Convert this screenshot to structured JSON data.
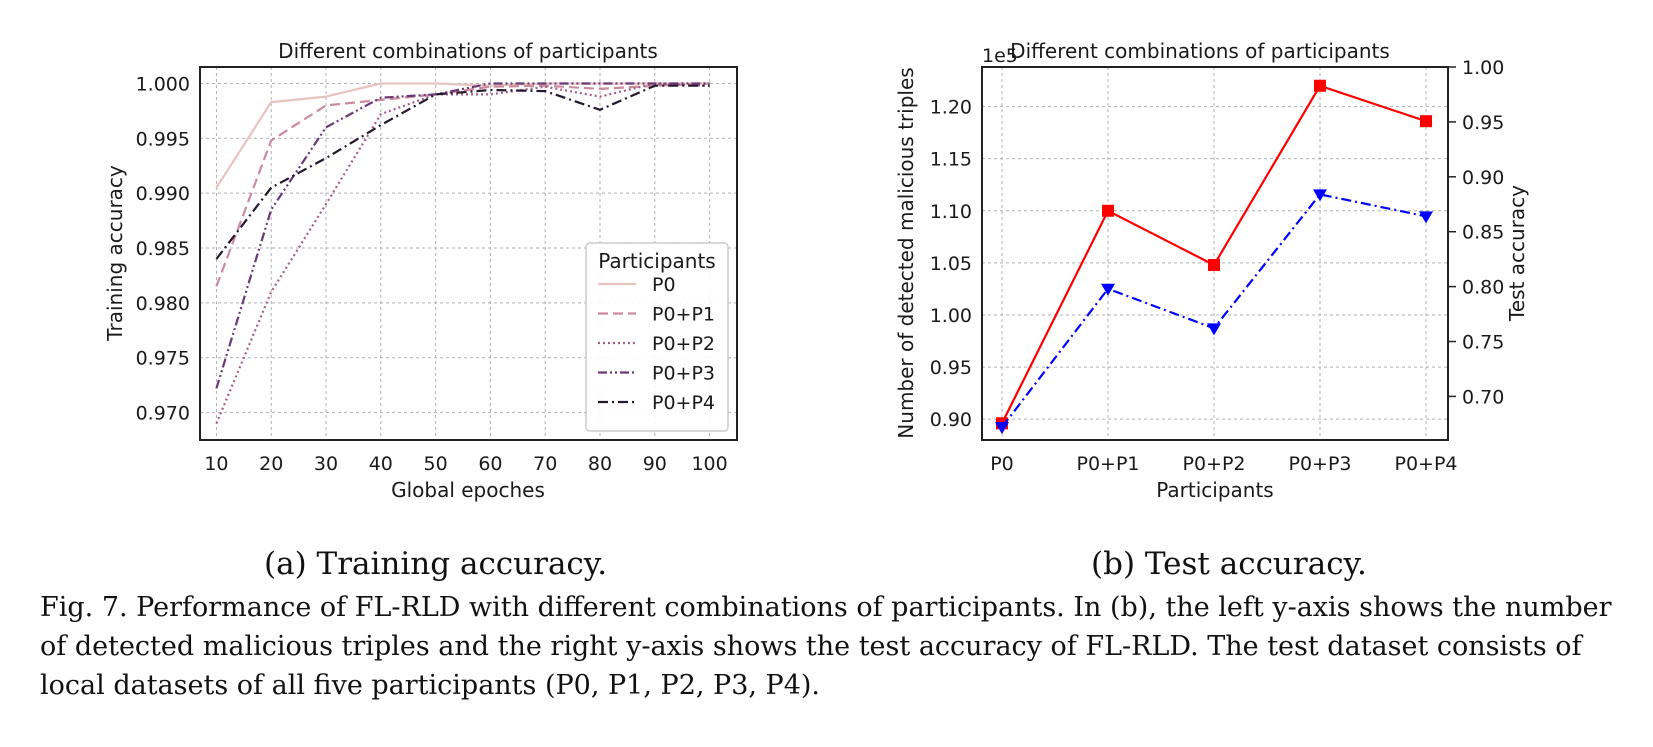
{
  "chart_data": [
    {
      "type": "line",
      "title": "Different combinations of participants",
      "xlabel": "Global epoches",
      "ylabel": "Training accuracy",
      "x": [
        10,
        20,
        30,
        40,
        50,
        60,
        70,
        80,
        90,
        100
      ],
      "xticks": [
        "10",
        "20",
        "30",
        "40",
        "50",
        "60",
        "70",
        "80",
        "90",
        "100"
      ],
      "yticks": [
        "0.970",
        "0.975",
        "0.980",
        "0.985",
        "0.990",
        "0.995",
        "1.000"
      ],
      "ytick_values": [
        0.97,
        0.975,
        0.98,
        0.985,
        0.99,
        0.995,
        1.0
      ],
      "xlim": [
        7,
        105
      ],
      "ylim": [
        0.9675,
        1.0015
      ],
      "grid": true,
      "legend_title": "Participants",
      "legend_position": "lower right",
      "series": [
        {
          "name": "P0",
          "color": "#e8c4be",
          "dash": "solid",
          "values": [
            0.9905,
            0.9983,
            0.9988,
            1.0,
            1.0,
            0.9998,
            1.0,
            1.0,
            1.0,
            1.0
          ]
        },
        {
          "name": "P0+P1",
          "color": "#cc8b9a",
          "dash": "dashed",
          "values": [
            0.9815,
            0.9948,
            0.998,
            0.9985,
            0.999,
            0.9997,
            0.9998,
            0.9995,
            0.9998,
            1.0
          ]
        },
        {
          "name": "P0+P2",
          "color": "#a35f89",
          "dash": "dotted",
          "values": [
            0.969,
            0.981,
            0.989,
            0.9972,
            0.999,
            0.999,
            0.9997,
            0.9988,
            1.0,
            0.9998
          ]
        },
        {
          "name": "P0+P3",
          "color": "#6a3a78",
          "dash": "dashdotdot",
          "values": [
            0.9722,
            0.9885,
            0.996,
            0.9987,
            0.999,
            1.0,
            1.0,
            1.0,
            1.0,
            1.0
          ]
        },
        {
          "name": "P0+P4",
          "color": "#24192e",
          "dash": "dashdot",
          "values": [
            0.984,
            0.9905,
            0.9932,
            0.9962,
            0.999,
            0.9994,
            0.9993,
            0.9976,
            0.9998,
            0.9998
          ]
        }
      ]
    },
    {
      "type": "line",
      "title": "Different combinations of participants",
      "xlabel": "Participants",
      "ylabel_left": "Number of detected malicious triples",
      "ylabel_right": "Test accuracy",
      "offset_text": "1e5",
      "categories": [
        "P0",
        "P0+P1",
        "P0+P2",
        "P0+P3",
        "P0+P4"
      ],
      "yticks_left": [
        "0.90",
        "0.95",
        "1.00",
        "1.05",
        "1.10",
        "1.15",
        "1.20"
      ],
      "ytick_values_left": [
        0.9,
        0.95,
        1.0,
        1.05,
        1.1,
        1.15,
        1.2
      ],
      "yticks_right": [
        "0.70",
        "0.75",
        "0.80",
        "0.85",
        "0.90",
        "0.95",
        "1.00"
      ],
      "ytick_values_right": [
        0.7,
        0.75,
        0.8,
        0.85,
        0.9,
        0.95,
        1.0
      ],
      "ylim_left": [
        0.88,
        1.238
      ],
      "ylim_right": [
        0.6603,
        1.0
      ],
      "grid": true,
      "left_color": "#ff0000",
      "right_color": "#0000ff",
      "series": [
        {
          "axis": "left",
          "color": "#ff0000",
          "marker": "square",
          "dash": "solid",
          "values": [
            0.896,
            1.1,
            1.048,
            1.22,
            1.186
          ]
        },
        {
          "axis": "right",
          "color": "#0000ff",
          "marker": "triangle-down",
          "dash": "dashdot",
          "values": [
            0.672,
            0.798,
            0.762,
            0.884,
            0.864
          ]
        }
      ]
    }
  ],
  "subcaptions": [
    "(a) Training accuracy.",
    "(b) Test accuracy."
  ],
  "caption": "Fig. 7.  Performance of FL-RLD with different combinations of participants. In (b), the left y-axis shows the number of detected malicious triples and the right y-axis shows the test accuracy of FL-RLD. The test dataset consists of local datasets of all five participants (P0, P1, P2, P3, P4)."
}
